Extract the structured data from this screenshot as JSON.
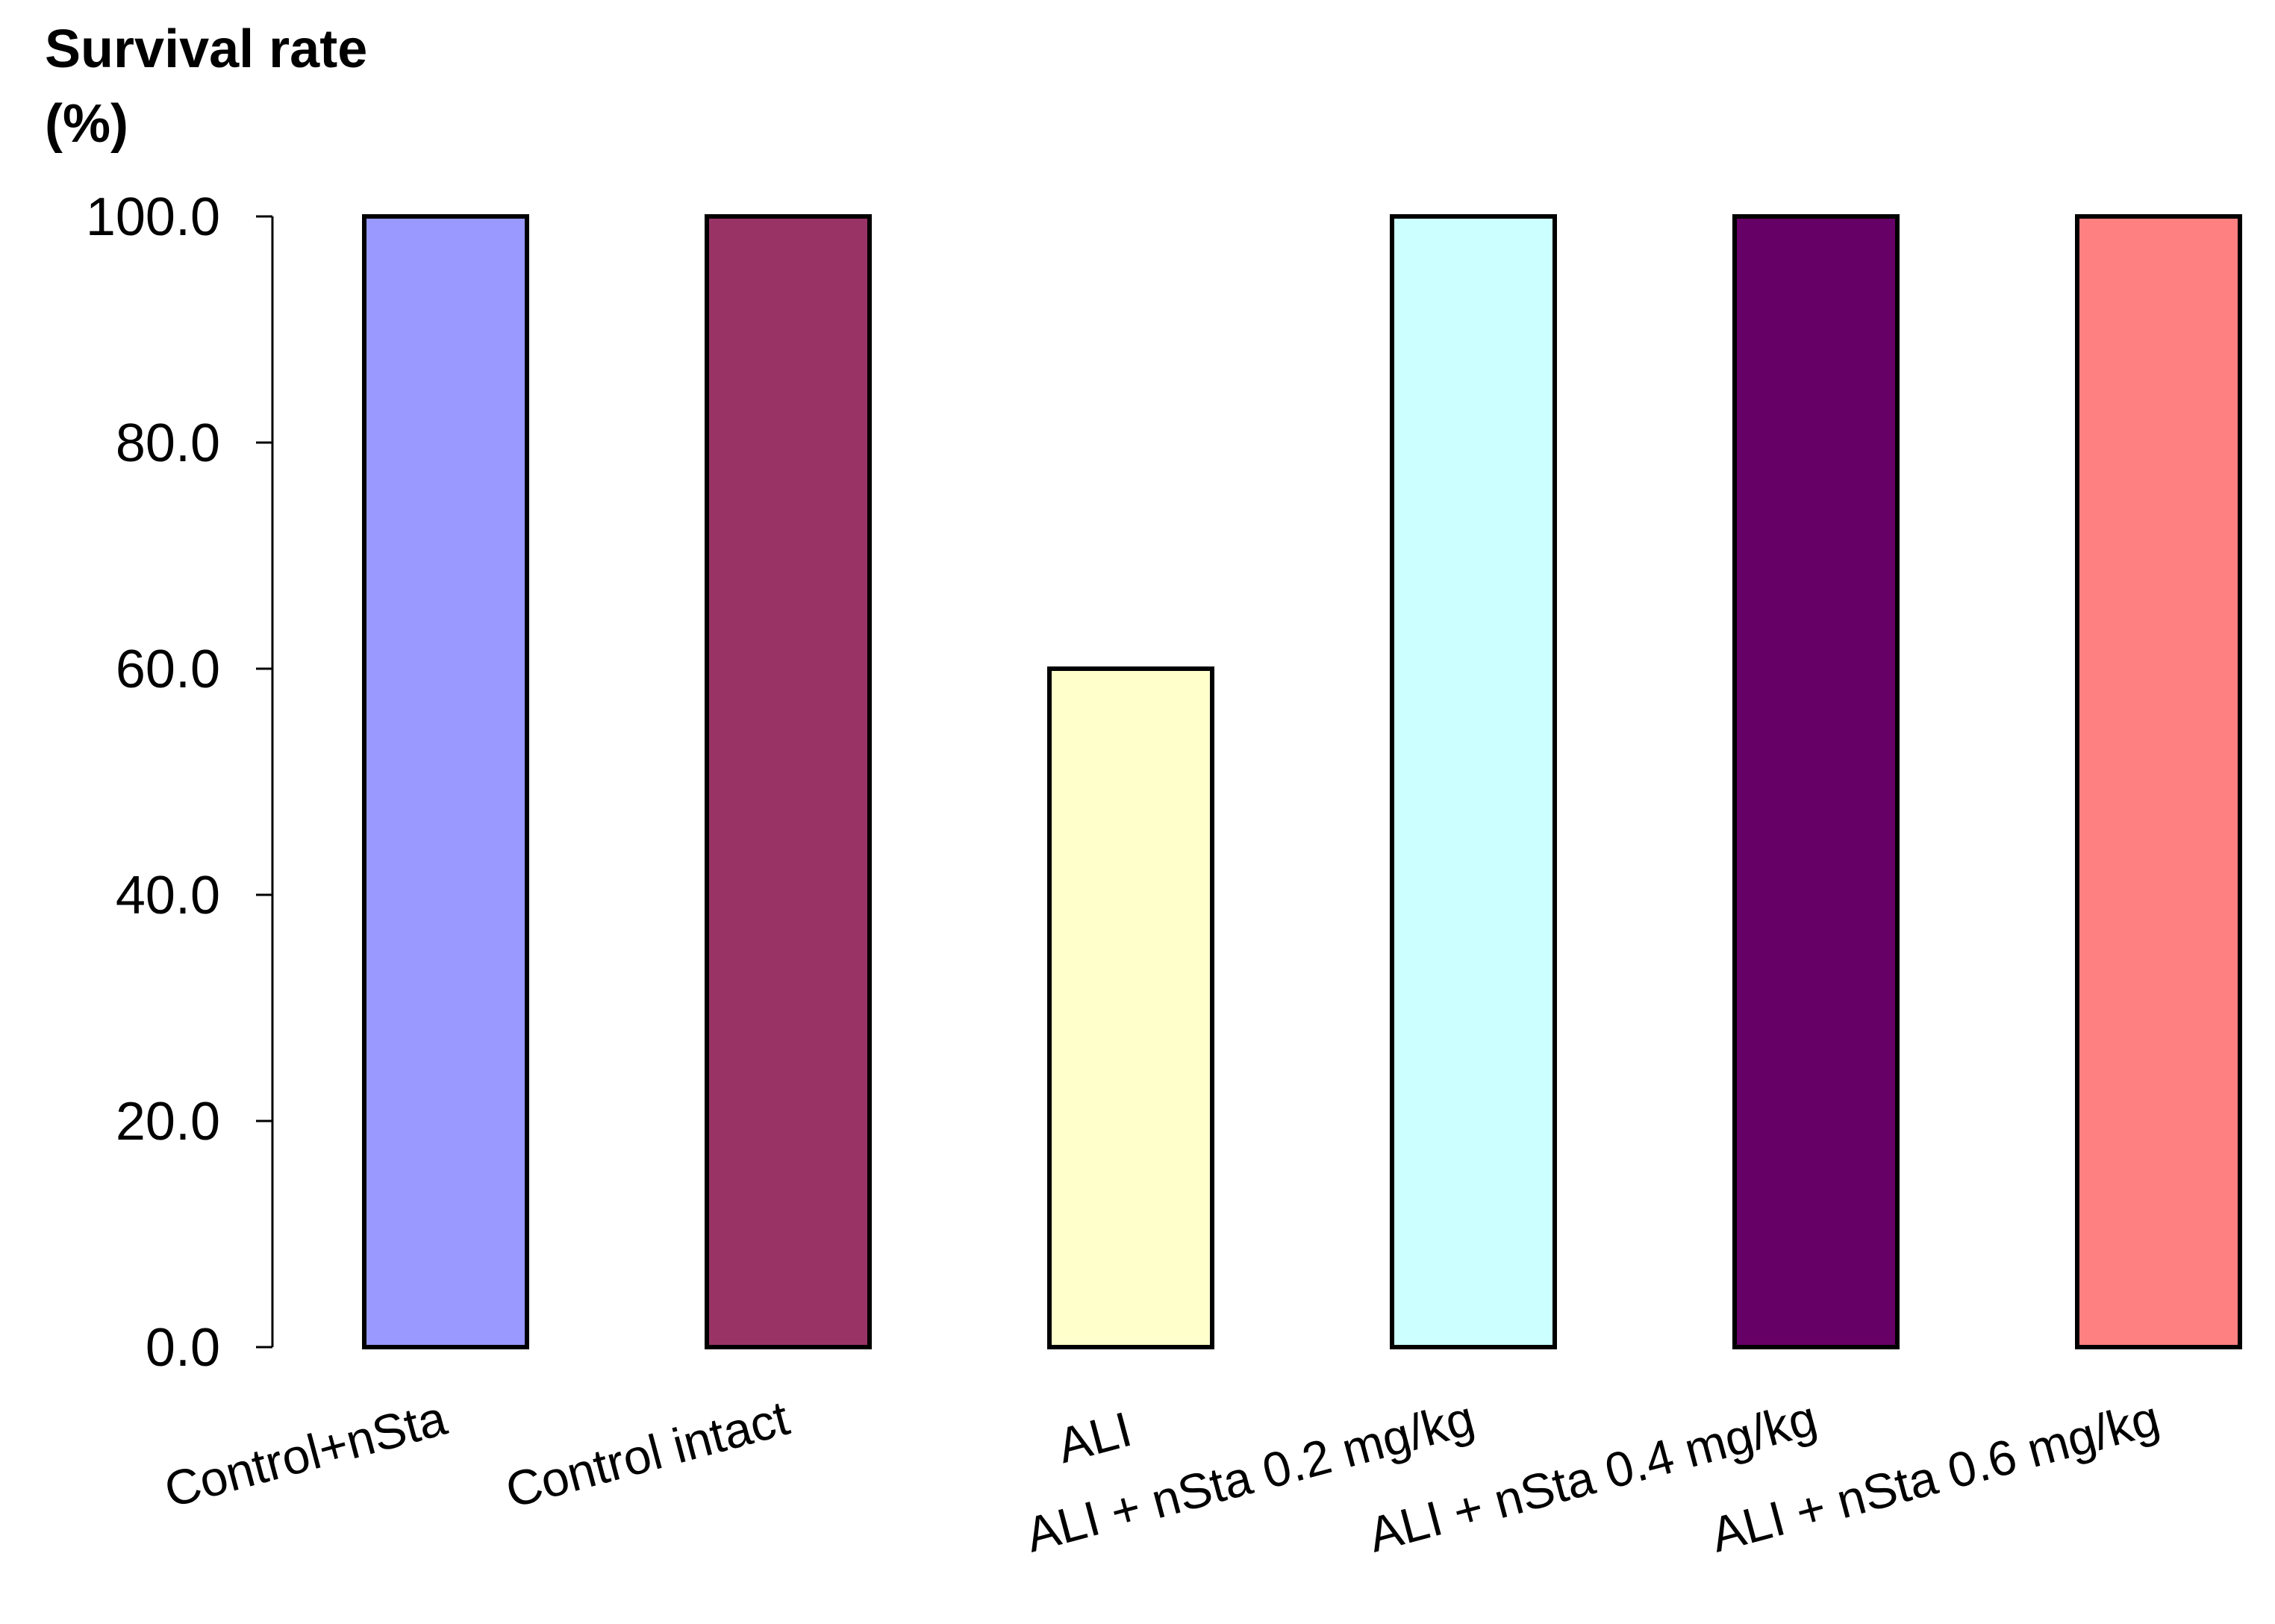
{
  "chart_data": {
    "type": "bar",
    "ylabel_lines": [
      "Survival rate",
      "(%)"
    ],
    "xlabel": "",
    "categories": [
      "Control+nSta",
      "Control intact",
      "ALI",
      "ALI + nSta 0.2 mg/kg",
      "ALI + nSta 0.4 mg/kg",
      "ALI + nSta 0.6 mg/kg"
    ],
    "values": [
      100.0,
      100.0,
      60.0,
      100.0,
      100.0,
      100.0
    ],
    "bar_colors": [
      "#9999ff",
      "#993366",
      "#ffffcc",
      "#ccffff",
      "#660066",
      "#ff8080"
    ],
    "ylim": [
      0,
      100
    ],
    "yticks": [
      "0.0",
      "20.0",
      "40.0",
      "60.0",
      "80.0",
      "100.0"
    ],
    "grid": false,
    "legend": "none"
  }
}
